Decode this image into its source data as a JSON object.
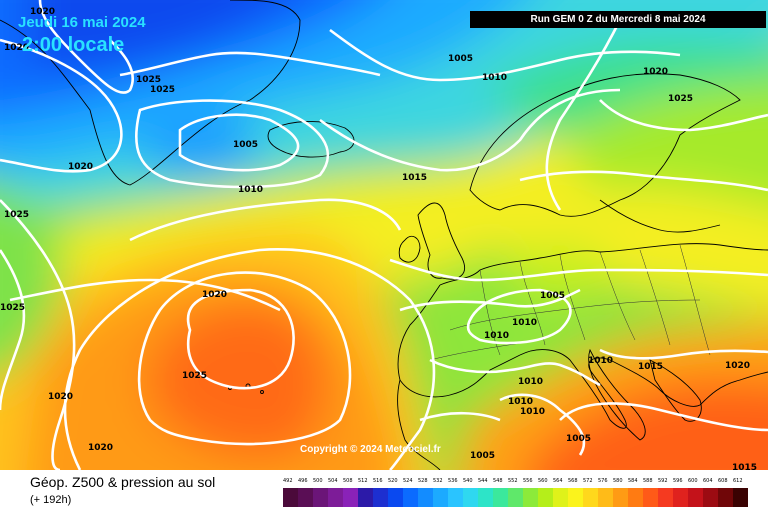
{
  "header": {
    "date": "Jeudi 16 mai 2024",
    "time": "2:00 locale",
    "run": "Run GEM 0 Z du Mercredi 8 mai 2024"
  },
  "copyright": "Copyright © 2024 Meteociel.fr",
  "footer": {
    "title": "Géop. Z500 & pression au sol",
    "subtitle": "(+ 192h)"
  },
  "isobar_labels": [
    "1020",
    "1020",
    "1025",
    "1025",
    "1005",
    "1020",
    "1010",
    "1025",
    "1005",
    "1010",
    "1020",
    "1025",
    "1015",
    "1020",
    "1005",
    "1010",
    "1010",
    "1010",
    "1010",
    "1015",
    "1020",
    "1025",
    "1025",
    "1020",
    "1020",
    "1010",
    "1010",
    "1005",
    "1005",
    "1015"
  ],
  "legend": {
    "values": [
      "492",
      "496",
      "500",
      "504",
      "508",
      "512",
      "516",
      "520",
      "524",
      "528",
      "532",
      "536",
      "540",
      "544",
      "548",
      "552",
      "556",
      "560",
      "564",
      "568",
      "572",
      "576",
      "580",
      "584",
      "588",
      "592",
      "596",
      "600",
      "604",
      "608",
      "612"
    ],
    "colors": [
      "#4b0a3a",
      "#5a0e55",
      "#6b1578",
      "#7d1c98",
      "#8a22b8",
      "#2c1aa8",
      "#1d2fd0",
      "#0a49f0",
      "#0b6bff",
      "#138cff",
      "#1caaff",
      "#2ac4ff",
      "#2fd8f0",
      "#2de4c8",
      "#3be89c",
      "#5fe86a",
      "#8cea3a",
      "#b5ee1a",
      "#dff21a",
      "#fbf31c",
      "#ffd81c",
      "#ffbb18",
      "#ff9b14",
      "#ff7b12",
      "#ff5a18",
      "#f53a20",
      "#e0221e",
      "#c4121a",
      "#9c0b12",
      "#700608",
      "#3a0202"
    ]
  }
}
